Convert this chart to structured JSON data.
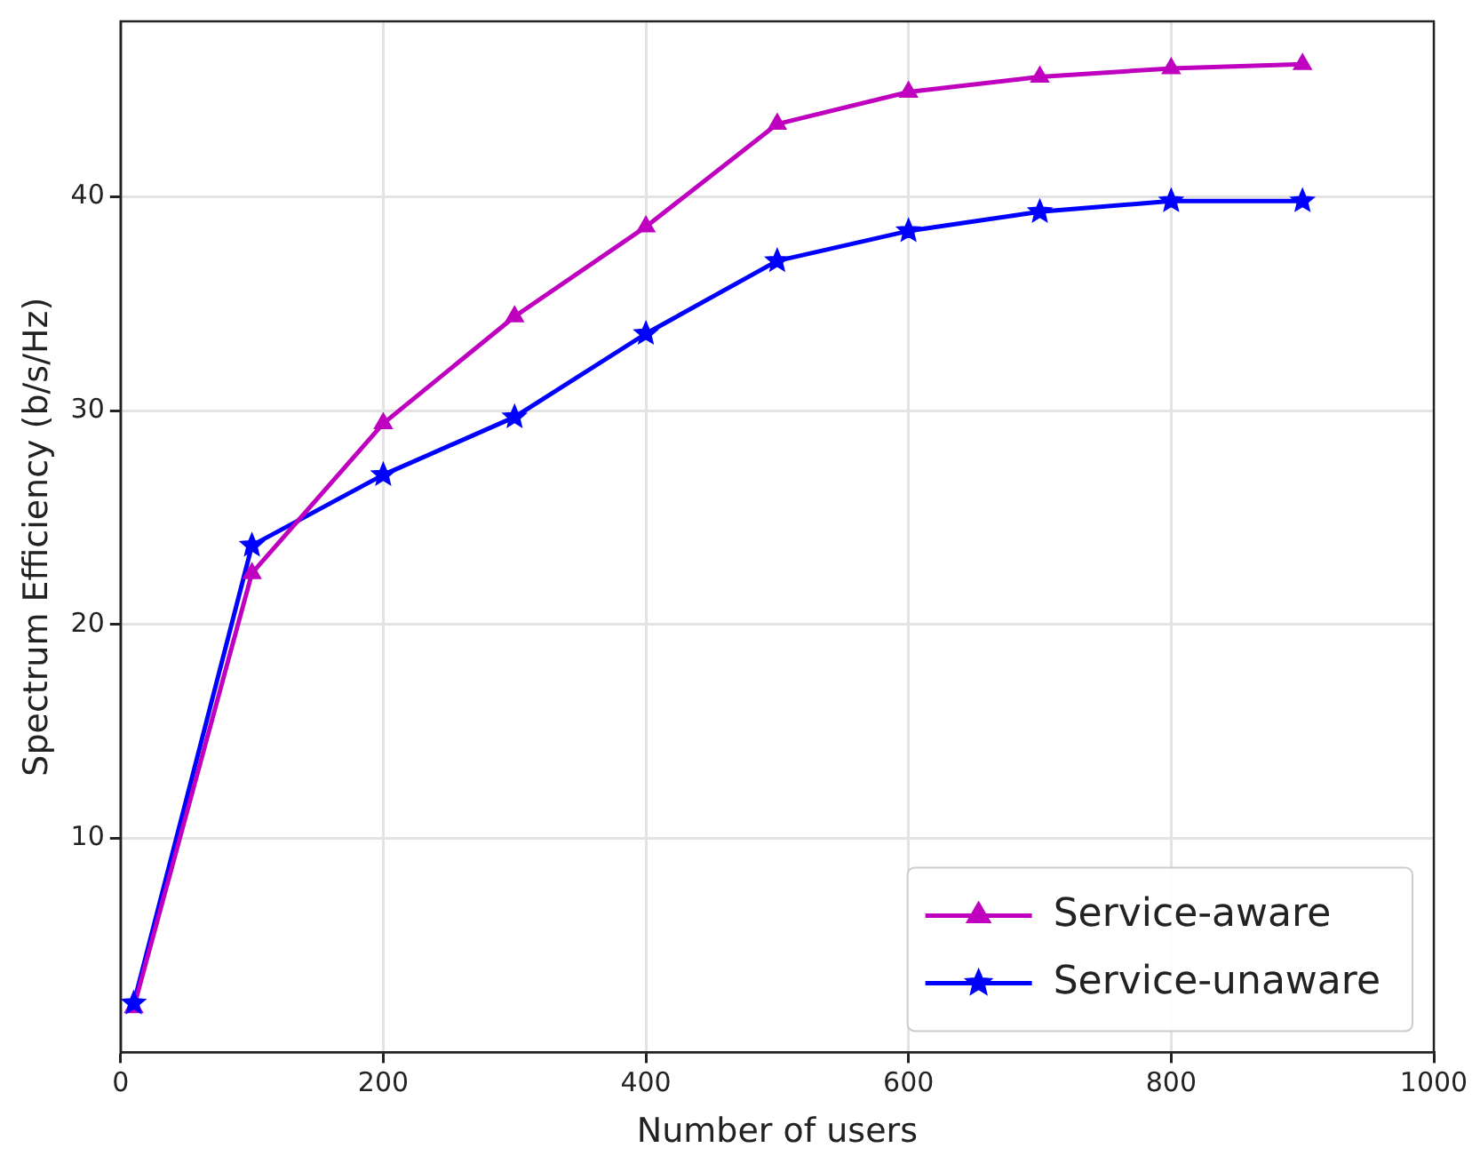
{
  "chart_data": {
    "type": "line",
    "xlabel": "Number of users",
    "ylabel": "Spectrum Efficiency (b/s/Hz)",
    "x": [
      10,
      100,
      200,
      300,
      400,
      500,
      600,
      700,
      800,
      900
    ],
    "series": [
      {
        "name": "Service-aware",
        "color": "#bf00bf",
        "marker": "triangle",
        "values": [
          2.1,
          22.4,
          29.4,
          34.4,
          38.6,
          43.4,
          44.9,
          45.6,
          46.0,
          46.2
        ]
      },
      {
        "name": "Service-unaware",
        "color": "#0000ff",
        "marker": "star",
        "values": [
          2.3,
          23.7,
          27.0,
          29.7,
          33.6,
          37.0,
          38.4,
          39.3,
          39.8,
          39.8
        ]
      }
    ],
    "xlim": [
      0,
      1000
    ],
    "xticks": [
      0,
      200,
      400,
      600,
      800,
      1000
    ],
    "ylim": [
      0,
      48.2
    ],
    "yticks": [
      10,
      20,
      30,
      40
    ],
    "grid": true,
    "legend": "bottom right",
    "line_style": "solid"
  }
}
